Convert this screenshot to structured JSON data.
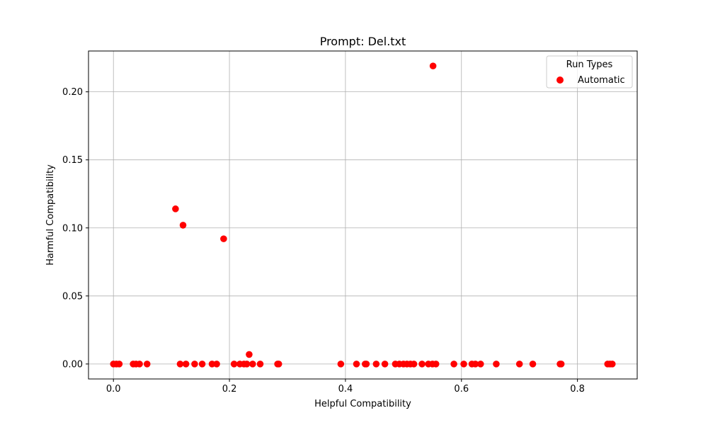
{
  "chart_data": {
    "type": "scatter",
    "title": "Prompt: Del.txt",
    "xlabel": "Helpful Compatibility",
    "ylabel": "Harmful Compatibility",
    "xlim": [
      -0.043,
      0.903
    ],
    "ylim": [
      -0.011,
      0.23
    ],
    "xticks": [
      0.0,
      0.2,
      0.4,
      0.6,
      0.8
    ],
    "xtick_labels": [
      "0.0",
      "0.2",
      "0.4",
      "0.6",
      "0.8"
    ],
    "yticks": [
      0.0,
      0.05,
      0.1,
      0.15,
      0.2
    ],
    "ytick_labels": [
      "0.00",
      "0.05",
      "0.10",
      "0.15",
      "0.20"
    ],
    "grid": true,
    "legend": {
      "title": "Run Types",
      "placement": "upper right"
    },
    "series": [
      {
        "name": "Automatic",
        "color": "#ff0000",
        "points": [
          [
            0.0,
            0.0
          ],
          [
            0.005,
            0.0
          ],
          [
            0.01,
            0.0
          ],
          [
            0.034,
            0.0
          ],
          [
            0.039,
            0.0
          ],
          [
            0.045,
            0.0
          ],
          [
            0.058,
            0.0
          ],
          [
            0.107,
            0.114
          ],
          [
            0.12,
            0.102
          ],
          [
            0.19,
            0.092
          ],
          [
            0.234,
            0.007
          ],
          [
            0.551,
            0.219
          ],
          [
            0.115,
            0.0
          ],
          [
            0.125,
            0.0
          ],
          [
            0.14,
            0.0
          ],
          [
            0.153,
            0.0
          ],
          [
            0.17,
            0.0
          ],
          [
            0.178,
            0.0
          ],
          [
            0.208,
            0.0
          ],
          [
            0.218,
            0.0
          ],
          [
            0.225,
            0.0
          ],
          [
            0.23,
            0.0
          ],
          [
            0.24,
            0.0
          ],
          [
            0.253,
            0.0
          ],
          [
            0.283,
            0.0
          ],
          [
            0.285,
            0.0
          ],
          [
            0.392,
            0.0
          ],
          [
            0.419,
            0.0
          ],
          [
            0.434,
            0.0
          ],
          [
            0.436,
            0.0
          ],
          [
            0.453,
            0.0
          ],
          [
            0.468,
            0.0
          ],
          [
            0.486,
            0.0
          ],
          [
            0.493,
            0.0
          ],
          [
            0.5,
            0.0
          ],
          [
            0.506,
            0.0
          ],
          [
            0.512,
            0.0
          ],
          [
            0.518,
            0.0
          ],
          [
            0.532,
            0.0
          ],
          [
            0.543,
            0.0
          ],
          [
            0.55,
            0.0
          ],
          [
            0.556,
            0.0
          ],
          [
            0.587,
            0.0
          ],
          [
            0.604,
            0.0
          ],
          [
            0.618,
            0.0
          ],
          [
            0.624,
            0.0
          ],
          [
            0.633,
            0.0
          ],
          [
            0.66,
            0.0
          ],
          [
            0.7,
            0.0
          ],
          [
            0.723,
            0.0
          ],
          [
            0.77,
            0.0
          ],
          [
            0.772,
            0.0
          ],
          [
            0.852,
            0.0
          ],
          [
            0.856,
            0.0
          ],
          [
            0.86,
            0.0
          ]
        ]
      }
    ]
  }
}
